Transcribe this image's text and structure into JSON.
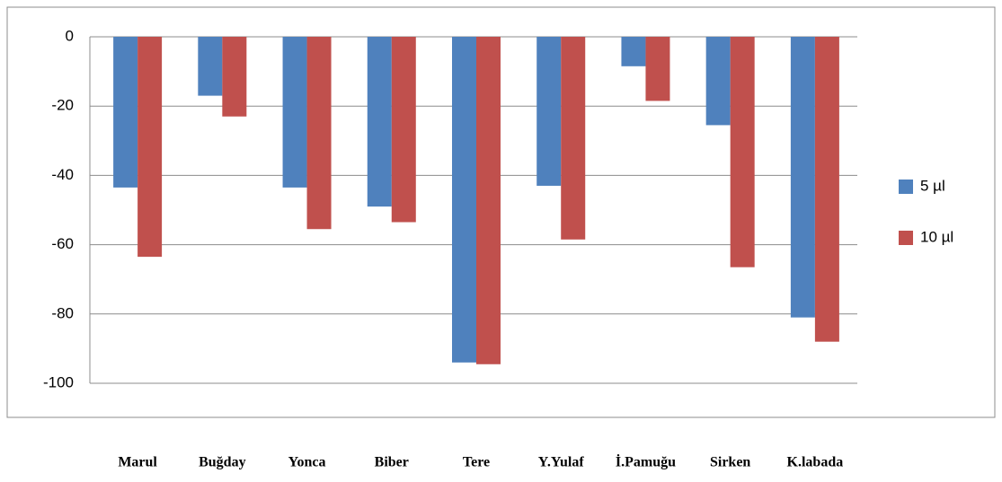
{
  "chart_data": {
    "type": "bar",
    "categories": [
      "Marul",
      "Buğday",
      "Yonca",
      "Biber",
      "Tere",
      "Y.Yulaf",
      "İ.Pamuğu",
      "Sirken",
      "K.labada"
    ],
    "series": [
      {
        "name": "5 µl",
        "color": "#4f81bd",
        "values": [
          -43.5,
          -17,
          -43.5,
          -49,
          -94,
          -43,
          -8.5,
          -25.5,
          -81
        ]
      },
      {
        "name": "10 µl",
        "color": "#c0504d",
        "values": [
          -63.5,
          -23,
          -55.5,
          -53.5,
          -94.5,
          -58.5,
          -18.5,
          -66.5,
          -88
        ]
      }
    ],
    "ylim": [
      -100,
      0
    ],
    "yticks": [
      0,
      -20,
      -40,
      -60,
      -80,
      -100
    ],
    "grid": true,
    "legend": "right"
  }
}
